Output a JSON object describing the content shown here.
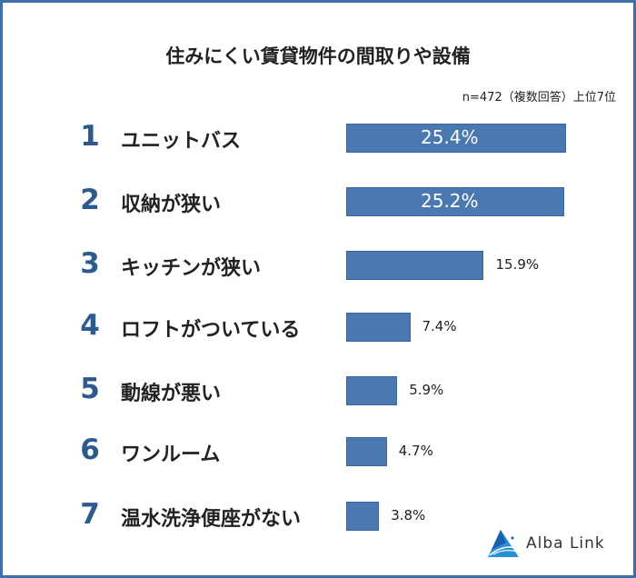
{
  "chart_data": {
    "type": "bar",
    "orientation": "horizontal",
    "title": "住みにくい賃貸物件の間取りや設備",
    "note": "n=472（複数回答）上位7位",
    "ranks": [
      "1",
      "2",
      "3",
      "4",
      "5",
      "6",
      "7"
    ],
    "categories": [
      "ユニットバス",
      "収納が狭い",
      "キッチンが狭い",
      "ロフトがついている",
      "動線が悪い",
      "ワンルーム",
      "温水洗浄便座がない"
    ],
    "values": [
      25.4,
      25.2,
      15.9,
      7.4,
      5.9,
      4.7,
      3.8
    ],
    "value_labels": [
      "25.4%",
      "25.2%",
      "15.9%",
      "7.4%",
      "5.9%",
      "4.7%",
      "3.8%"
    ],
    "unit": "%",
    "bar_color": "#4a78b0",
    "rank_color": "#2d5b8e",
    "grid": false
  },
  "brand": {
    "name": "Alba Link",
    "logo_icon": "triangle-mountain-icon"
  }
}
